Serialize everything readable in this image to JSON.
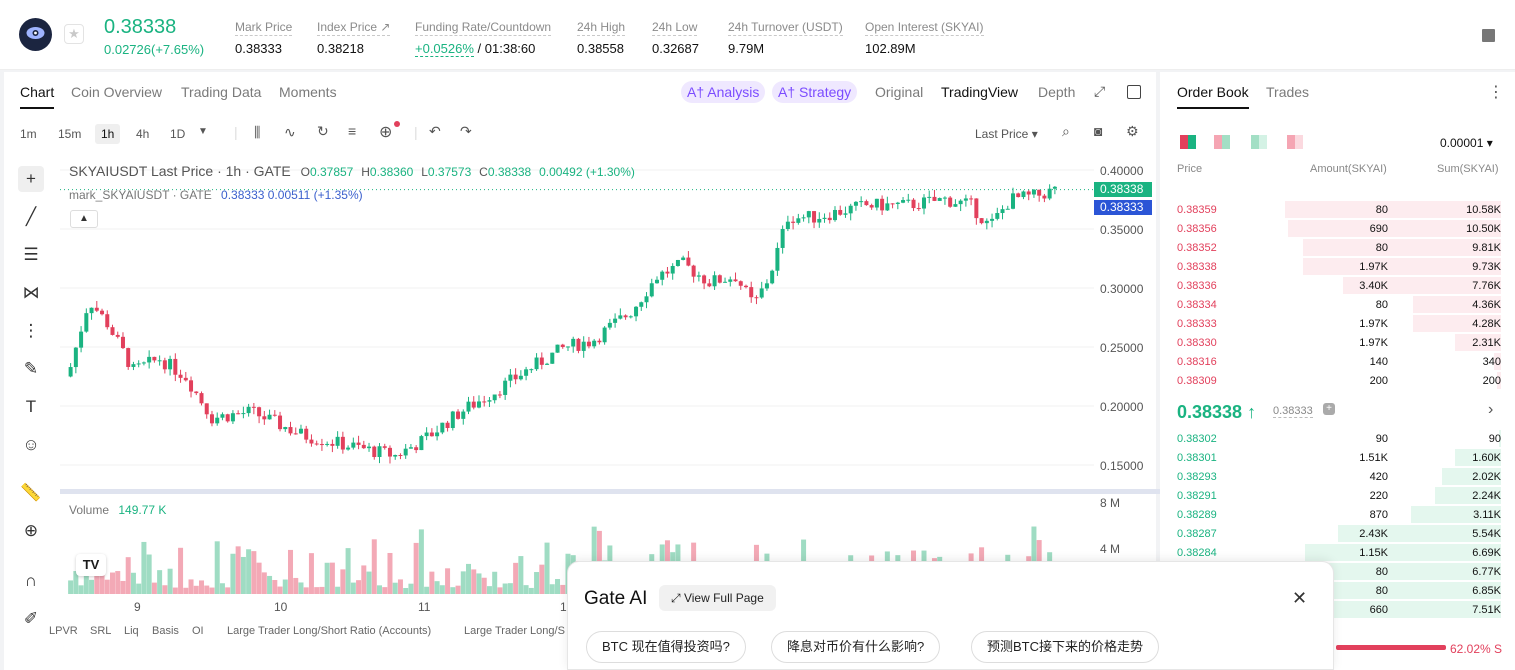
{
  "header": {
    "price": "0.38338",
    "change": "0.02726(+7.65%)",
    "stats": [
      {
        "label": "Mark Price",
        "value": "0.38333"
      },
      {
        "label": "Index Price ↗",
        "value": "0.38218"
      },
      {
        "label": "Funding Rate/Countdown",
        "value_a": "+0.0526%",
        "value_b": "/ 01:38:60"
      },
      {
        "label": "24h High",
        "value": "0.38558"
      },
      {
        "label": "24h Low",
        "value": "0.32687"
      },
      {
        "label": "24h Turnover (USDT)",
        "value": "9.79M"
      },
      {
        "label": "Open Interest (SKYAI)",
        "value": "102.89M"
      }
    ]
  },
  "chart_tabs": {
    "chart": "Chart",
    "coin": "Coin Overview",
    "trading": "Trading Data",
    "moments": "Moments",
    "analysis": "A† Analysis",
    "strategy": "A† Strategy",
    "original": "Original",
    "tradingview": "TradingView",
    "depth": "Depth"
  },
  "toolbar": {
    "intervals": [
      "1m",
      "15m",
      "1h",
      "4h",
      "1D"
    ],
    "price_type": "Last Price ▾"
  },
  "legend": {
    "symbol": "SKYAIUSDT Last Price · 1h · GATE",
    "o_label": "O",
    "o": "0.37857",
    "h_label": "H",
    "h": "0.38360",
    "l_label": "L",
    "l": "0.37573",
    "c_label": "C",
    "c": "0.38338",
    "delta": "0.00492 (+1.30%)",
    "mark": "mark_SKYAIUSDT · GATE",
    "mark_val": "0.38333 0.00511 (+1.35%)"
  },
  "y_axis": [
    "0.40000",
    "0.35000",
    "0.30000",
    "0.25000",
    "0.20000",
    "0.15000"
  ],
  "price_tags": {
    "last": "0.38338",
    "mark": "0.38333"
  },
  "volume": {
    "label": "Volume",
    "value": "149.77 K",
    "ticks": [
      "8 M",
      "4 M"
    ]
  },
  "x_axis": [
    "9",
    "10",
    "11",
    "1"
  ],
  "indicators": [
    "LPVR",
    "SRL",
    "Liq",
    "Basis",
    "OI",
    "Large Trader Long/Short Ratio (Accounts)",
    "Large Trader Long/S"
  ],
  "order_book": {
    "tab_book": "Order Book",
    "tab_trades": "Trades",
    "precision": "0.00001 ▾",
    "col_price": "Price",
    "col_amount": "Amount(SKYAI)",
    "col_sum": "Sum(SKYAI)",
    "asks": [
      {
        "price": "0.38359",
        "amount": "80",
        "sum": "10.58K",
        "depth": 0.98,
        "bar": 0.98
      },
      {
        "price": "0.38356",
        "amount": "690",
        "sum": "10.50K",
        "depth": 0.97,
        "bar": 0.97
      },
      {
        "price": "0.38352",
        "amount": "80",
        "sum": "9.81K",
        "depth": 0.9,
        "bar": 0.9
      },
      {
        "price": "0.38338",
        "amount": "1.97K",
        "sum": "9.73K",
        "depth": 0.9,
        "bar": 0.9
      },
      {
        "price": "0.38336",
        "amount": "3.40K",
        "sum": "7.76K",
        "depth": 0.72,
        "bar": 0.72
      },
      {
        "price": "0.38334",
        "amount": "80",
        "sum": "4.36K",
        "depth": 0.4,
        "bar": 0.4
      },
      {
        "price": "0.38333",
        "amount": "1.97K",
        "sum": "4.28K",
        "depth": 0.4,
        "bar": 0.4
      },
      {
        "price": "0.38330",
        "amount": "1.97K",
        "sum": "2.31K",
        "depth": 0.21,
        "bar": 0.21
      },
      {
        "price": "0.38316",
        "amount": "140",
        "sum": "340",
        "depth": 0.03,
        "bar": 0.03
      },
      {
        "price": "0.38309",
        "amount": "200",
        "sum": "200",
        "depth": 0.02,
        "bar": 0.02
      }
    ],
    "mid_price": "0.38338 ↑",
    "mid_mark": "0.38333",
    "bids": [
      {
        "price": "0.38302",
        "amount": "90",
        "sum": "90",
        "depth": 0.01,
        "bar": 0.01
      },
      {
        "price": "0.38301",
        "amount": "1.51K",
        "sum": "1.60K",
        "depth": 0.21,
        "bar": 0.21
      },
      {
        "price": "0.38293",
        "amount": "420",
        "sum": "2.02K",
        "depth": 0.27,
        "bar": 0.27
      },
      {
        "price": "0.38291",
        "amount": "220",
        "sum": "2.24K",
        "depth": 0.3,
        "bar": 0.3
      },
      {
        "price": "0.38289",
        "amount": "870",
        "sum": "3.11K",
        "depth": 0.41,
        "bar": 0.41
      },
      {
        "price": "0.38287",
        "amount": "2.43K",
        "sum": "5.54K",
        "depth": 0.74,
        "bar": 0.74
      },
      {
        "price": "0.38284",
        "amount": "1.15K",
        "sum": "6.69K",
        "depth": 0.89,
        "bar": 0.89
      },
      {
        "price": "",
        "amount": "80",
        "sum": "6.77K",
        "depth": 0.9,
        "bar": 0.9
      },
      {
        "price": "",
        "amount": "80",
        "sum": "6.85K",
        "depth": 0.91,
        "bar": 0.91
      },
      {
        "price": "",
        "amount": "660",
        "sum": "7.51K",
        "depth": 1.0,
        "bar": 1.0
      }
    ],
    "ratio": "62.02% S"
  },
  "ai_panel": {
    "title": "Gate AI",
    "view_full": "View Full Page",
    "questions": [
      "BTC 现在值得投资吗?",
      "降息对币价有什么影响?",
      "预测BTC接下来的价格走势"
    ]
  },
  "colors": {
    "up": "#1ab381",
    "down": "#e2405c",
    "accent": "#7b4cff"
  }
}
